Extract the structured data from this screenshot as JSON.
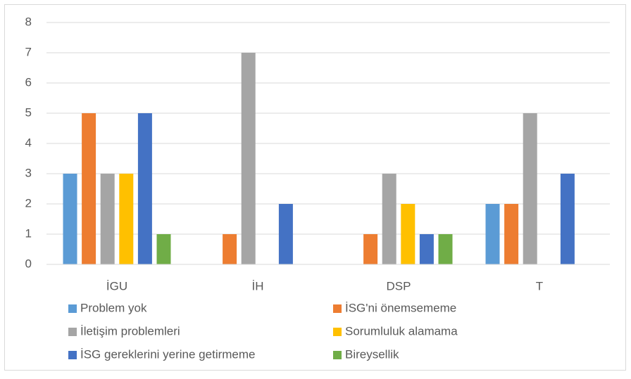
{
  "chart_data": {
    "type": "bar",
    "categories": [
      "İGU",
      "İH",
      "DSP",
      "T"
    ],
    "series": [
      {
        "name": "Problem yok",
        "color": "#5b9bd5",
        "values": [
          3,
          0,
          0,
          2
        ]
      },
      {
        "name": "İSG'ni önemsememe",
        "color": "#ed7d31",
        "values": [
          5,
          1,
          1,
          2
        ]
      },
      {
        "name": "İletişim problemleri",
        "color": "#a5a5a5",
        "values": [
          3,
          7,
          3,
          5
        ]
      },
      {
        "name": "Sorumluluk alamama",
        "color": "#ffc000",
        "values": [
          3,
          0,
          2,
          0
        ]
      },
      {
        "name": "İSG gereklerini yerine getirmeme",
        "color": "#4472c4",
        "values": [
          5,
          2,
          1,
          3
        ]
      },
      {
        "name": "Bireysellik",
        "color": "#70ad47",
        "values": [
          1,
          0,
          1,
          0
        ]
      }
    ],
    "ylim": [
      0,
      8
    ],
    "yticks": [
      0,
      1,
      2,
      3,
      4,
      5,
      6,
      7,
      8
    ],
    "grid": true,
    "legend": "bottom"
  }
}
